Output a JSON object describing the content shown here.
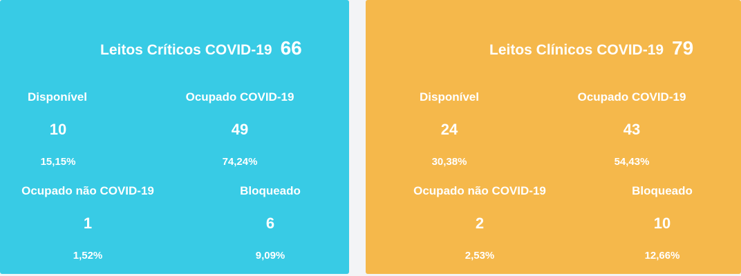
{
  "colors": {
    "critical_card": "#38cbe5",
    "clinical_card": "#f5b84b",
    "page_background": "#f3f4f6",
    "text": "#ffffff"
  },
  "cards": [
    {
      "title": "Leitos Críticos COVID-19",
      "total": "66",
      "stats": [
        {
          "label": "Disponível",
          "value": "10",
          "percent": "15,15%"
        },
        {
          "label": "Ocupado COVID-19",
          "value": "49",
          "percent": "74,24%"
        },
        {
          "label": "Ocupado não COVID-19",
          "value": "1",
          "percent": "1,52%"
        },
        {
          "label": "Bloqueado",
          "value": "6",
          "percent": "9,09%"
        }
      ]
    },
    {
      "title": "Leitos Clínicos COVID-19",
      "total": "79",
      "stats": [
        {
          "label": "Disponível",
          "value": "24",
          "percent": "30,38%"
        },
        {
          "label": "Ocupado COVID-19",
          "value": "43",
          "percent": "54,43%"
        },
        {
          "label": "Ocupado não COVID-19",
          "value": "2",
          "percent": "2,53%"
        },
        {
          "label": "Bloqueado",
          "value": "10",
          "percent": "12,66%"
        }
      ]
    }
  ]
}
